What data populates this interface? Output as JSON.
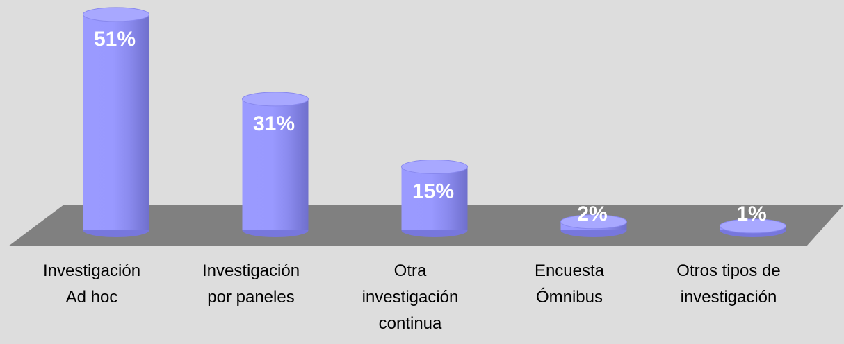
{
  "chart_data": {
    "type": "bar",
    "categories": [
      "Investigación\nAd hoc",
      "Investigación\npor paneles",
      "Otra\ninvestigación\ncontinua",
      "Encuesta\nÓmnibus",
      "Otros tipos de\ninvestigación"
    ],
    "values": [
      51,
      31,
      15,
      2,
      1
    ],
    "value_labels": [
      "51%",
      "31%",
      "15%",
      "2%",
      "1%"
    ],
    "color": "#9999ff"
  }
}
